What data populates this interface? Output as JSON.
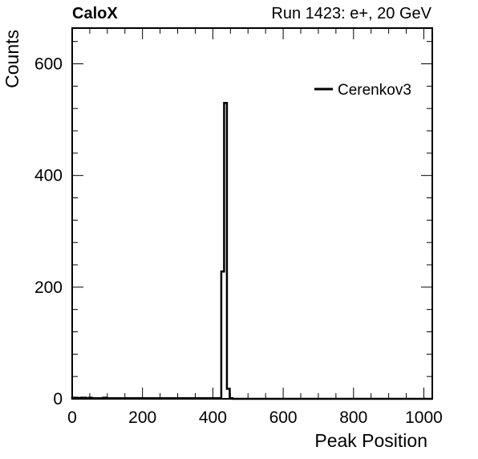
{
  "header": {
    "brand": "CaloX",
    "run_info": "Run 1423: e+, 20 GeV"
  },
  "chart_data": {
    "type": "histogram",
    "xlabel": "Peak Position",
    "ylabel": "Counts",
    "xlim": [
      0,
      1024
    ],
    "ylim": [
      0,
      664
    ],
    "xticks": [
      0,
      200,
      400,
      600,
      800,
      1000
    ],
    "yticks": [
      0,
      200,
      400,
      600
    ],
    "grid": false,
    "legend": {
      "position": "top-right",
      "entries": [
        {
          "name": "Cerenkov3",
          "color": "#000000"
        }
      ]
    },
    "series": [
      {
        "name": "Cerenkov3",
        "color": "#000000",
        "bin_width": 8,
        "bins": [
          {
            "x0": 0,
            "value": 2
          },
          {
            "x0": 16,
            "value": 1
          },
          {
            "x0": 24,
            "value": 2
          },
          {
            "x0": 40,
            "value": 1
          },
          {
            "x0": 48,
            "value": 2
          },
          {
            "x0": 56,
            "value": 1
          },
          {
            "x0": 64,
            "value": 1
          },
          {
            "x0": 88,
            "value": 2
          },
          {
            "x0": 96,
            "value": 1
          },
          {
            "x0": 112,
            "value": 1
          },
          {
            "x0": 344,
            "value": 1
          },
          {
            "x0": 424,
            "value": 228
          },
          {
            "x0": 432,
            "value": 530
          },
          {
            "x0": 440,
            "value": 18
          },
          {
            "x0": 448,
            "value": 1
          }
        ]
      }
    ]
  }
}
